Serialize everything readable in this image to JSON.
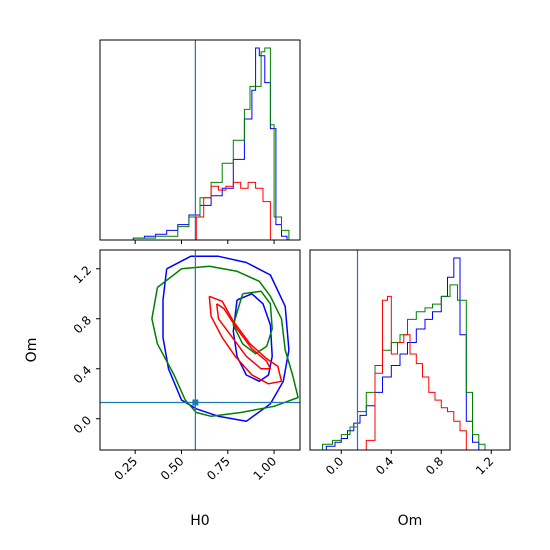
{
  "chart_data": {
    "type": "corner",
    "params": [
      "H0",
      "Om"
    ],
    "truth": {
      "H0": 0.575,
      "Om": 0.13
    },
    "truth_color": "#1f77b4",
    "ranges": {
      "H0": [
        0.06,
        1.14
      ],
      "Om": [
        -0.25,
        1.35
      ]
    },
    "ticks": {
      "H0": [
        0.25,
        0.5,
        0.75,
        1.0
      ],
      "H0_labels": [
        "0.25",
        "0.50",
        "0.75",
        "1.00"
      ],
      "Om_diag": [
        0.0,
        0.4,
        0.8,
        1.2
      ],
      "Om_diag_labels": [
        "0.0",
        "0.4",
        "0.8",
        "1.2"
      ],
      "Om_y": [
        0.0,
        0.4,
        0.8,
        1.2
      ],
      "Om_y_labels": [
        "0.0",
        "0.4",
        "0.8",
        "1.2"
      ]
    },
    "series": [
      {
        "color": "#0000ff",
        "hist_H0": {
          "edges": [
            0.24,
            0.3,
            0.36,
            0.42,
            0.48,
            0.54,
            0.6,
            0.66,
            0.72,
            0.78,
            0.84,
            0.88,
            0.9,
            0.92,
            0.95,
            0.98,
            1.01,
            1.04,
            1.07,
            1.1
          ],
          "counts": [
            0.01,
            0.02,
            0.03,
            0.05,
            0.08,
            0.13,
            0.18,
            0.23,
            0.27,
            0.42,
            0.63,
            0.78,
            1.0,
            0.96,
            0.82,
            0.58,
            0.08,
            0.02,
            0.0
          ]
        },
        "hist_Om": {
          "edges": [
            -0.12,
            -0.05,
            0.0,
            0.05,
            0.1,
            0.15,
            0.2,
            0.27,
            0.33,
            0.4,
            0.47,
            0.53,
            0.6,
            0.67,
            0.73,
            0.8,
            0.85,
            0.9,
            0.95,
            1.0,
            1.05,
            1.1
          ],
          "counts": [
            0.02,
            0.04,
            0.06,
            0.1,
            0.14,
            0.18,
            0.23,
            0.3,
            0.38,
            0.44,
            0.5,
            0.56,
            0.63,
            0.68,
            0.72,
            0.8,
            0.9,
            1.0,
            0.6,
            0.15,
            0.04
          ]
        },
        "contours": [
          [
            [
              0.42,
              1.2
            ],
            [
              0.55,
              1.3
            ],
            [
              0.7,
              1.3
            ],
            [
              0.85,
              1.25
            ],
            [
              0.98,
              1.15
            ],
            [
              1.06,
              0.9
            ],
            [
              1.08,
              0.55
            ],
            [
              1.05,
              0.3
            ],
            [
              0.98,
              0.12
            ],
            [
              0.85,
              -0.02
            ],
            [
              0.7,
              0.02
            ],
            [
              0.58,
              0.08
            ],
            [
              0.5,
              0.15
            ],
            [
              0.43,
              0.4
            ],
            [
              0.4,
              0.65
            ],
            [
              0.4,
              0.95
            ],
            [
              0.42,
              1.2
            ]
          ],
          [
            [
              0.8,
              0.95
            ],
            [
              0.88,
              1.0
            ],
            [
              0.94,
              0.92
            ],
            [
              0.98,
              0.75
            ],
            [
              0.99,
              0.5
            ],
            [
              0.97,
              0.35
            ],
            [
              0.92,
              0.3
            ],
            [
              0.85,
              0.35
            ],
            [
              0.8,
              0.5
            ],
            [
              0.78,
              0.7
            ],
            [
              0.8,
              0.95
            ]
          ]
        ]
      },
      {
        "color": "#008000",
        "hist_H0": {
          "edges": [
            0.24,
            0.36,
            0.48,
            0.54,
            0.6,
            0.66,
            0.72,
            0.78,
            0.84,
            0.87,
            0.9,
            0.93,
            0.95,
            0.98,
            1.0,
            1.04,
            1.08,
            1.12
          ],
          "counts": [
            0.01,
            0.02,
            0.07,
            0.12,
            0.22,
            0.3,
            0.4,
            0.52,
            0.68,
            0.8,
            0.8,
            0.98,
            1.0,
            0.6,
            0.12,
            0.05,
            0.0
          ]
        },
        "hist_Om": {
          "edges": [
            -0.15,
            -0.07,
            0.0,
            0.07,
            0.13,
            0.2,
            0.27,
            0.33,
            0.4,
            0.47,
            0.53,
            0.6,
            0.67,
            0.73,
            0.8,
            0.87,
            0.93,
            1.0,
            1.05,
            1.1,
            1.15
          ],
          "counts": [
            0.03,
            0.05,
            0.08,
            0.12,
            0.2,
            0.3,
            0.44,
            0.52,
            0.56,
            0.6,
            0.68,
            0.72,
            0.74,
            0.76,
            0.8,
            0.86,
            0.78,
            0.3,
            0.08,
            0.03
          ]
        },
        "contours": [
          [
            [
              0.37,
              1.05
            ],
            [
              0.5,
              1.2
            ],
            [
              0.65,
              1.22
            ],
            [
              0.8,
              1.18
            ],
            [
              0.92,
              1.1
            ],
            [
              0.98,
              0.98
            ],
            [
              1.04,
              0.8
            ],
            [
              1.06,
              0.55
            ],
            [
              1.1,
              0.35
            ],
            [
              1.13,
              0.17
            ],
            [
              1.0,
              0.1
            ],
            [
              0.82,
              0.05
            ],
            [
              0.66,
              0.02
            ],
            [
              0.58,
              0.05
            ],
            [
              0.52,
              0.15
            ],
            [
              0.46,
              0.35
            ],
            [
              0.37,
              0.6
            ],
            [
              0.34,
              0.8
            ],
            [
              0.37,
              1.05
            ]
          ],
          [
            [
              0.83,
              1.0
            ],
            [
              0.93,
              1.02
            ],
            [
              0.98,
              0.92
            ],
            [
              0.99,
              0.72
            ],
            [
              0.96,
              0.58
            ],
            [
              0.9,
              0.52
            ],
            [
              0.83,
              0.6
            ],
            [
              0.78,
              0.75
            ],
            [
              0.83,
              1.0
            ]
          ]
        ]
      },
      {
        "color": "#ff0000",
        "hist_H0": {
          "edges": [
            0.58,
            0.62,
            0.66,
            0.7,
            0.74,
            0.78,
            0.82,
            0.86,
            0.9,
            0.94,
            0.98
          ],
          "counts": [
            0.12,
            0.22,
            0.28,
            0.26,
            0.28,
            0.3,
            0.27,
            0.3,
            0.27,
            0.2
          ]
        },
        "hist_Om": {
          "edges": [
            0.2,
            0.27,
            0.33,
            0.37,
            0.4,
            0.45,
            0.5,
            0.55,
            0.6,
            0.65,
            0.7,
            0.75,
            0.8,
            0.85,
            0.9,
            0.95,
            1.0
          ],
          "counts": [
            0.05,
            0.4,
            0.78,
            0.8,
            0.5,
            0.56,
            0.6,
            0.5,
            0.45,
            0.38,
            0.3,
            0.26,
            0.22,
            0.2,
            0.15,
            0.1
          ]
        },
        "contours": [
          [
            [
              0.65,
              0.98
            ],
            [
              0.72,
              0.94
            ],
            [
              0.78,
              0.78
            ],
            [
              0.87,
              0.6
            ],
            [
              0.96,
              0.48
            ],
            [
              1.02,
              0.42
            ],
            [
              1.04,
              0.3
            ],
            [
              0.97,
              0.28
            ],
            [
              0.88,
              0.35
            ],
            [
              0.79,
              0.5
            ],
            [
              0.72,
              0.65
            ],
            [
              0.66,
              0.82
            ],
            [
              0.65,
              0.98
            ]
          ],
          [
            [
              0.69,
              0.92
            ],
            [
              0.73,
              0.88
            ],
            [
              0.8,
              0.72
            ],
            [
              0.88,
              0.56
            ],
            [
              0.96,
              0.46
            ],
            [
              0.98,
              0.4
            ],
            [
              0.93,
              0.4
            ],
            [
              0.85,
              0.5
            ],
            [
              0.77,
              0.66
            ],
            [
              0.7,
              0.8
            ],
            [
              0.69,
              0.92
            ]
          ]
        ]
      }
    ],
    "xlabels": [
      "H0",
      "Om"
    ],
    "ylabels": [
      "",
      "Om"
    ],
    "grid": false,
    "legend": "none"
  }
}
